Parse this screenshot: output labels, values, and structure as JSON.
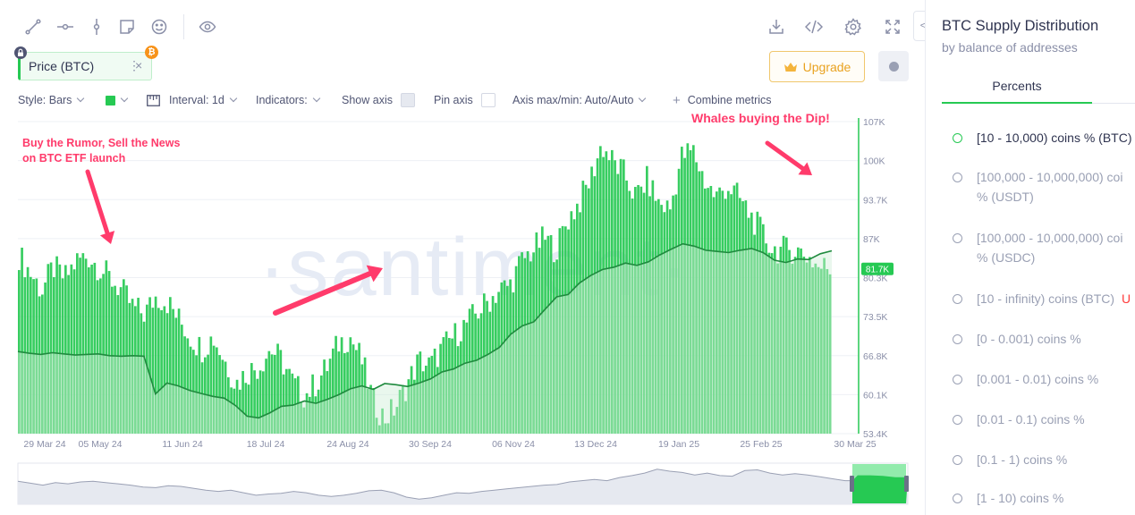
{
  "toolbar": {
    "icons": [
      "line-tool-icon",
      "ray-tool-icon",
      "vertical-line-icon",
      "note-icon",
      "emoji-icon",
      "eye-icon",
      "download-icon",
      "embed-code-icon",
      "settings-gear-icon",
      "fullscreen-icon"
    ]
  },
  "metric": {
    "label": "Price (BTC)",
    "menu": "⋮",
    "close": "×",
    "badge": "₿",
    "color": "#26c953"
  },
  "upgrade_label": "Upgrade",
  "options": {
    "style": "Style: Bars",
    "interval": "Interval: 1d",
    "indicators": "Indicators:",
    "show_axis": "Show axis",
    "pin_axis": "Pin axis",
    "axis_maxmin": "Axis max/min: Auto/Auto",
    "combine": "Combine metrics"
  },
  "annotations": {
    "rumor_line1": "Buy the Rumor, Sell the News",
    "rumor_line2": "on BTC ETF launch",
    "whales": "Whales buying the Dip!"
  },
  "watermark": "·santiment·",
  "chart_data": {
    "type": "bar",
    "y_axis_ticks": [
      "107K",
      "100K",
      "93.7K",
      "87K",
      "80.3K",
      "73.5K",
      "66.8K",
      "60.1K",
      "53.4K"
    ],
    "x_axis_ticks": [
      "29 Mar 24",
      "05 May 24",
      "11 Jun 24",
      "18 Jul 24",
      "24 Aug 24",
      "30 Sep 24",
      "06 Nov 24",
      "13 Dec 24",
      "19 Jan 25",
      "25 Feb 25",
      "30 Mar 25"
    ],
    "current_value": "81.7K",
    "ylim": [
      53.4,
      107
    ],
    "bar_color": "#26c953",
    "line_color": "#1f8a3e",
    "series": [
      {
        "name": "Price (BTC)",
        "values": [
          84,
          81,
          78,
          82,
          80,
          83,
          84,
          82,
          80,
          78,
          75,
          74,
          77,
          76,
          73,
          70,
          68,
          70,
          66,
          62,
          64,
          65,
          68,
          66,
          62,
          60,
          62,
          65,
          69,
          70,
          66,
          59,
          56,
          58,
          62,
          66,
          65,
          68,
          70,
          72,
          74,
          76,
          78,
          79,
          83,
          85,
          87,
          85,
          90,
          93,
          97,
          103,
          100,
          98,
          94,
          97,
          93,
          92,
          101,
          102,
          97,
          94,
          96,
          94,
          91,
          88,
          85,
          85,
          85,
          84,
          82,
          82
        ]
      },
      {
        "name": "[10 - 10,000) coins % (BTC)",
        "values": [
          67.5,
          67.2,
          67.0,
          67.3,
          67.1,
          66.9,
          67.0,
          67.1,
          66.8,
          66.7,
          66.8,
          66.7,
          60.2,
          62.1,
          61.6,
          60.8,
          60.3,
          59.8,
          59.5,
          58.2,
          56.4,
          56.1,
          57.0,
          58.1,
          58.3,
          59.0,
          58.6,
          59.3,
          60.1,
          61.1,
          61.6,
          61.0,
          62.0,
          61.8,
          61.5,
          62.1,
          62.8,
          64.0,
          64.5,
          65.5,
          66.0,
          67.0,
          68.2,
          70.5,
          71.9,
          72.6,
          74.8,
          76.9,
          77.3,
          79.3,
          80.6,
          81.6,
          82.0,
          82.7,
          82.3,
          82.9,
          84.1,
          85.1,
          86.0,
          85.6,
          84.9,
          84.7,
          84.5,
          84.9,
          85.2,
          84.5,
          83.2,
          82.8,
          83.4,
          83.3,
          84.3,
          84.8
        ]
      }
    ]
  },
  "sidebar": {
    "collapse": "<",
    "title": "BTC Supply Distribution",
    "subtitle": "by balance of addresses",
    "tab": "Percents",
    "items": [
      {
        "label": "[10 - 10,000) coins % (BTC)",
        "active": true
      },
      {
        "label": "[100,000 - 10,000,000) coi",
        "label2": "% (USDT)"
      },
      {
        "label": "[100,000 - 10,000,000) coi",
        "label2": "% (USDC)"
      },
      {
        "label": "[10 - infinity) coins (BTC)",
        "suffix": "U"
      },
      {
        "label": "[0 - 0.001) coins %"
      },
      {
        "label": "[0.001 - 0.01) coins %"
      },
      {
        "label": "[0.01 - 0.1) coins %"
      },
      {
        "label": "[0.1 - 1) coins %"
      },
      {
        "label": "[1 - 10) coins %"
      }
    ]
  }
}
